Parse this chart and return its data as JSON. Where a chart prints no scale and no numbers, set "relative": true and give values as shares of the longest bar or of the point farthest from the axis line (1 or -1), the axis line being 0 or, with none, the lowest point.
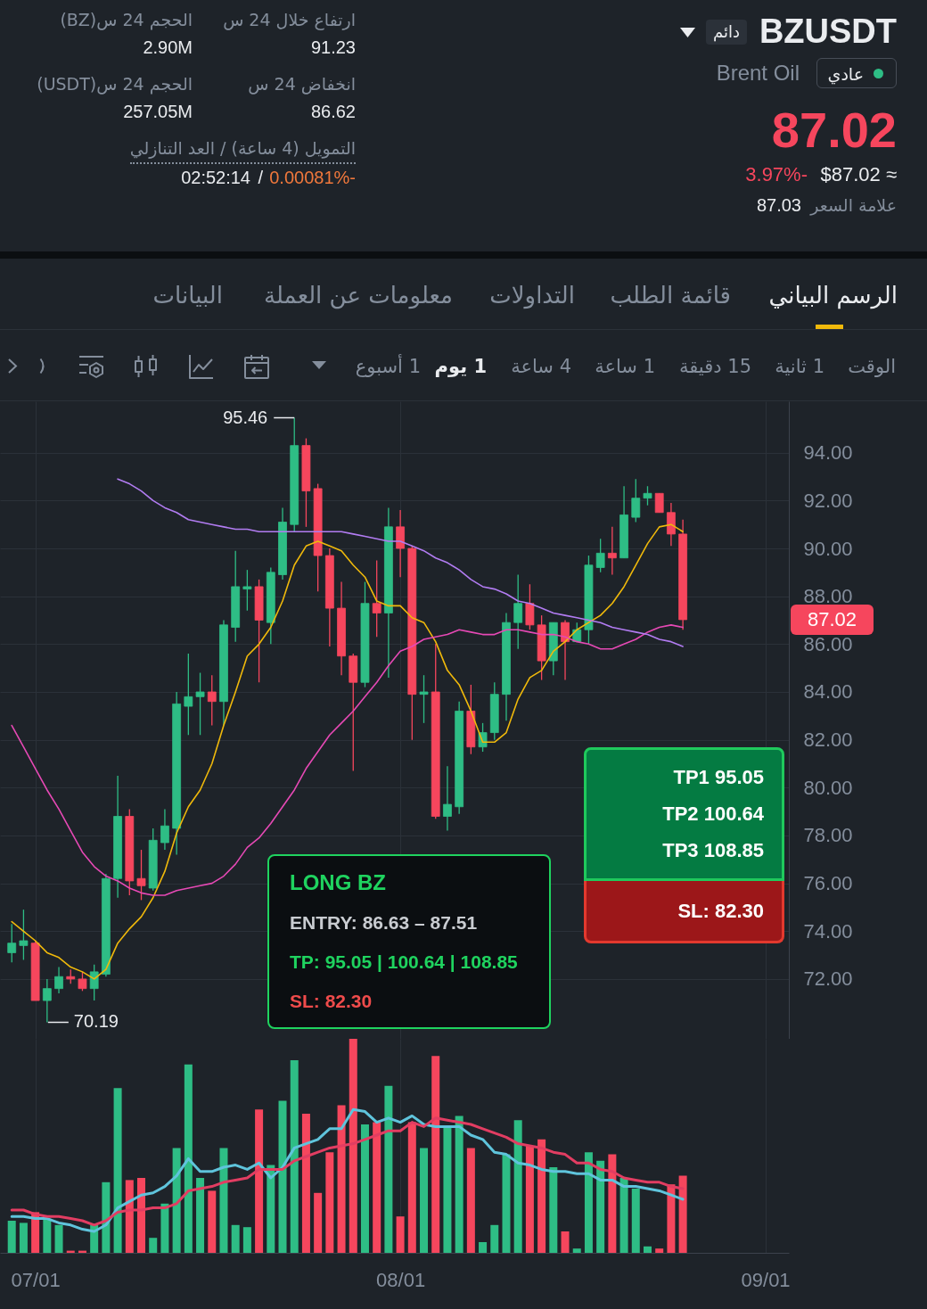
{
  "chart_data": [
    {
      "type": "other",
      "title": "BZUSDT",
      "subtitle": "Brent Oil",
      "annotations": [
        "دائم",
        "عادي",
        "87.02",
        "3.97%-",
        "$87.02 ≈",
        "علامة السعر",
        "87.03",
        "ارتفاع خلال 24 س",
        "91.23",
        "انخفاض 24 س",
        "86.62",
        "الحجم 24 س(BZ)",
        "2.90M",
        "الحجم 24 س(USDT)",
        "257.05M",
        "التمويل (4 ساعة) / العد التنازلي",
        "0.00081%-",
        "/",
        "02:52:14",
        "الرسم البياني",
        "قائمة الطلب",
        "التداولات",
        "معلومات عن العملة",
        "البيانات",
        "الوقت",
        "1 ثانية",
        "15 دقيقة",
        "1 ساعة",
        "4 ساعة",
        "1 يوم",
        "1 أسبوع"
      ]
    },
    {
      "type": "candlestick",
      "x": [
        "--06-29",
        "--06-30",
        "--07-01",
        "--07-02",
        "--07-03",
        "--07-04",
        "--07-05",
        "--07-06",
        "--07-07",
        "--07-08",
        "--07-09",
        "--07-10",
        "--07-11",
        "--07-12",
        "--07-13",
        "--07-14",
        "--07-15",
        "--07-16",
        "--07-17",
        "--07-18",
        "--07-19",
        "--07-20",
        "--07-21",
        "--07-22",
        "--07-23",
        "--07-24",
        "--07-25",
        "--07-26",
        "--07-27",
        "--07-28",
        "--07-29",
        "--07-30",
        "--07-31",
        "--08-01",
        "--08-02",
        "--08-03",
        "--08-04",
        "--08-05",
        "--08-06",
        "--08-07",
        "--08-08",
        "--08-09",
        "--08-10",
        "--08-11",
        "--08-12",
        "--08-13",
        "--08-14",
        "--08-15",
        "--08-16",
        "--08-17",
        "--08-18",
        "--08-19",
        "--08-20",
        "--08-21",
        "--08-22",
        "--08-23",
        "--08-24",
        "--08-25"
      ],
      "ohlc": [
        [
          73.1,
          74.3,
          72.7,
          73.5
        ],
        [
          73.4,
          74.9,
          72.8,
          73.6
        ],
        [
          73.5,
          73.6,
          71.1,
          71.1
        ],
        [
          71.1,
          72.0,
          70.19,
          71.6
        ],
        [
          71.6,
          72.5,
          71.4,
          72.1
        ],
        [
          72.1,
          72.4,
          71.8,
          72.0
        ],
        [
          72.0,
          72.3,
          71.5,
          71.6
        ],
        [
          71.6,
          72.6,
          71.1,
          72.3
        ],
        [
          72.2,
          76.4,
          72.1,
          76.2
        ],
        [
          76.2,
          80.5,
          75.4,
          78.8
        ],
        [
          78.8,
          79.1,
          75.5,
          76.1
        ],
        [
          76.2,
          77.4,
          75.3,
          75.9
        ],
        [
          75.8,
          78.3,
          75.7,
          77.8
        ],
        [
          77.7,
          79.1,
          77.4,
          78.4
        ],
        [
          78.3,
          84.0,
          77.2,
          83.5
        ],
        [
          83.4,
          85.6,
          82.2,
          83.8
        ],
        [
          83.8,
          84.8,
          82.2,
          84.0
        ],
        [
          84.0,
          84.7,
          82.6,
          83.6
        ],
        [
          83.6,
          87.0,
          82.6,
          86.8
        ],
        [
          86.7,
          89.9,
          86.1,
          88.4
        ],
        [
          88.3,
          89.1,
          87.4,
          88.4
        ],
        [
          88.4,
          88.7,
          84.4,
          87.0
        ],
        [
          86.9,
          89.2,
          86.0,
          89.0
        ],
        [
          88.9,
          91.7,
          88.7,
          91.1
        ],
        [
          91.0,
          95.46,
          90.7,
          94.3
        ],
        [
          94.3,
          94.6,
          90.9,
          92.4
        ],
        [
          92.5,
          92.7,
          88.2,
          89.7
        ],
        [
          89.7,
          90.0,
          85.9,
          87.5
        ],
        [
          87.5,
          88.6,
          84.7,
          85.5
        ],
        [
          85.5,
          85.6,
          80.7,
          84.4
        ],
        [
          84.4,
          88.6,
          84.2,
          87.7
        ],
        [
          87.7,
          89.5,
          86.3,
          87.3
        ],
        [
          87.3,
          91.7,
          84.6,
          90.9
        ],
        [
          90.9,
          91.6,
          88.8,
          90.0
        ],
        [
          90.0,
          90.1,
          82.0,
          83.9
        ],
        [
          83.9,
          84.7,
          82.7,
          84.0
        ],
        [
          84.0,
          86.0,
          78.7,
          78.8
        ],
        [
          78.8,
          80.9,
          78.2,
          79.3
        ],
        [
          79.2,
          83.6,
          78.9,
          83.2
        ],
        [
          83.2,
          84.3,
          81.4,
          81.7
        ],
        [
          81.7,
          82.7,
          81.5,
          82.3
        ],
        [
          82.3,
          84.4,
          82.0,
          83.9
        ],
        [
          83.9,
          87.3,
          82.8,
          86.9
        ],
        [
          86.9,
          88.9,
          85.8,
          87.7
        ],
        [
          87.7,
          88.5,
          86.6,
          86.8
        ],
        [
          86.8,
          87.2,
          84.5,
          85.3
        ],
        [
          85.3,
          86.9,
          84.7,
          86.9
        ],
        [
          86.9,
          87.0,
          84.5,
          86.1
        ],
        [
          86.1,
          86.9,
          86.1,
          86.6
        ],
        [
          86.6,
          89.7,
          86.0,
          89.3
        ],
        [
          89.2,
          90.4,
          89.0,
          89.8
        ],
        [
          89.8,
          90.9,
          88.9,
          89.6
        ],
        [
          89.6,
          92.6,
          89.6,
          91.4
        ],
        [
          91.3,
          92.9,
          91.1,
          92.1
        ],
        [
          92.1,
          92.6,
          91.8,
          92.3
        ],
        [
          92.3,
          92.3,
          91.5,
          91.5
        ],
        [
          91.5,
          91.9,
          90.1,
          90.6
        ],
        [
          90.6,
          91.2,
          86.6,
          87.02
        ]
      ],
      "colors": [
        "#2ebd85",
        "#2ebd85",
        "#f6465d",
        "#2ebd85",
        "#2ebd85",
        "#f6465d",
        "#f6465d",
        "#2ebd85",
        "#2ebd85",
        "#2ebd85",
        "#f6465d",
        "#f6465d",
        "#2ebd85",
        "#2ebd85",
        "#2ebd85",
        "#2ebd85",
        "#2ebd85",
        "#f6465d",
        "#2ebd85",
        "#2ebd85",
        "#2ebd85",
        "#f6465d",
        "#2ebd85",
        "#2ebd85",
        "#2ebd85",
        "#f6465d",
        "#f6465d",
        "#f6465d",
        "#f6465d",
        "#f6465d",
        "#2ebd85",
        "#f6465d",
        "#2ebd85",
        "#f6465d",
        "#f6465d",
        "#2ebd85",
        "#f6465d",
        "#2ebd85",
        "#2ebd85",
        "#f6465d",
        "#2ebd85",
        "#2ebd85",
        "#2ebd85",
        "#2ebd85",
        "#f6465d",
        "#f6465d",
        "#2ebd85",
        "#f6465d",
        "#2ebd85",
        "#2ebd85",
        "#2ebd85",
        "#f6465d",
        "#2ebd85",
        "#2ebd85",
        "#2ebd85",
        "#f6465d",
        "#f6465d",
        "#f6465d"
      ],
      "series": [
        {
          "type": "line",
          "color": "#f0b90b",
          "values": [
            74.4,
            74.0,
            73.6,
            73.1,
            72.9,
            72.5,
            72.3,
            72.0,
            72.4,
            73.5,
            74.1,
            74.6,
            75.4,
            76.5,
            78.1,
            79.2,
            79.9,
            81.0,
            82.6,
            84.0,
            85.5,
            86.0,
            86.7,
            87.8,
            89.3,
            90.1,
            90.3,
            90.1,
            89.9,
            89.3,
            88.8,
            87.8,
            87.6,
            87.6,
            87.1,
            86.9,
            86.1,
            84.9,
            84.3,
            83.2,
            81.9,
            81.9,
            82.3,
            83.7,
            84.6,
            84.9,
            85.7,
            86.1,
            86.6,
            86.9,
            87.2,
            87.7,
            88.4,
            89.3,
            90.2,
            90.9,
            91.0,
            90.7
          ]
        },
        {
          "type": "line",
          "color": "#e649b5",
          "values": [
            82.6,
            81.7,
            80.8,
            79.9,
            79.1,
            78.2,
            77.3,
            76.7,
            76.3,
            76.1,
            75.8,
            75.6,
            75.5,
            75.5,
            75.7,
            75.8,
            75.9,
            76.0,
            76.3,
            76.8,
            77.5,
            77.9,
            78.5,
            79.2,
            79.9,
            80.8,
            81.5,
            82.2,
            82.7,
            83.2,
            83.8,
            84.4,
            85.1,
            85.7,
            85.9,
            86.2,
            86.3,
            86.4,
            86.6,
            86.5,
            86.4,
            86.4,
            86.6,
            86.6,
            86.5,
            86.4,
            86.4,
            86.3,
            86.1,
            86.0,
            85.8,
            85.8,
            86.0,
            86.2,
            86.5,
            86.7,
            86.8,
            86.7
          ]
        },
        {
          "type": "line",
          "color": "#b27cf2",
          "values": [
            null,
            null,
            null,
            null,
            null,
            null,
            null,
            null,
            null,
            92.9,
            92.7,
            92.4,
            92.0,
            91.7,
            91.5,
            91.2,
            91.1,
            91.0,
            90.9,
            90.8,
            90.8,
            90.7,
            90.7,
            90.7,
            90.7,
            90.7,
            90.7,
            90.7,
            90.7,
            90.6,
            90.5,
            90.4,
            90.3,
            90.3,
            90.1,
            89.9,
            89.6,
            89.4,
            89.1,
            88.7,
            88.4,
            88.3,
            88.1,
            87.8,
            87.7,
            87.5,
            87.3,
            87.2,
            87.1,
            87.0,
            86.9,
            86.7,
            86.6,
            86.5,
            86.4,
            86.2,
            86.1,
            85.9
          ]
        }
      ],
      "xlim": [
        "--06-28",
        "--09-03"
      ],
      "xticks": [
        {
          "value": "--07-01",
          "label": "07/01"
        },
        {
          "value": "--08-01",
          "label": "08/01"
        },
        {
          "value": "--09-01",
          "label": "09/01"
        }
      ],
      "ylim": [
        69.5,
        96.15
      ],
      "yticks": [
        {
          "value": 72,
          "label": "72.00"
        },
        {
          "value": 74,
          "label": "74.00"
        },
        {
          "value": 76,
          "label": "76.00"
        },
        {
          "value": 78,
          "label": "78.00"
        },
        {
          "value": 80,
          "label": "80.00"
        },
        {
          "value": 82,
          "label": "82.00"
        },
        {
          "value": 84,
          "label": "84.00"
        },
        {
          "value": 86,
          "label": "86.00"
        },
        {
          "value": 88,
          "label": "88.00"
        },
        {
          "value": 90,
          "label": "90.00"
        },
        {
          "value": 92,
          "label": "92.00"
        },
        {
          "value": 94,
          "label": "94.00"
        }
      ],
      "grid": true,
      "tick_labels": "y",
      "annotations": [
        {
          "text": "95.46",
          "x": "--07-23",
          "y": 95.46
        },
        {
          "text": "70.19",
          "x": "--07-02",
          "y": 70.19
        },
        "87.02",
        "TP1 95.05",
        "TP2 100.64",
        "TP3 108.85",
        "SL: 82.30",
        "LONG BZ",
        "ENTRY: 86.63 – 87.51",
        "TP: 95.05 | 100.64 | 108.85",
        "SL: 82.30"
      ]
    },
    {
      "type": "bar",
      "relative": true,
      "x": [
        "--06-29",
        "--06-30",
        "--07-01",
        "--07-02",
        "--07-03",
        "--07-04",
        "--07-05",
        "--07-06",
        "--07-07",
        "--07-08",
        "--07-09",
        "--07-10",
        "--07-11",
        "--07-12",
        "--07-13",
        "--07-14",
        "--07-15",
        "--07-16",
        "--07-17",
        "--07-18",
        "--07-19",
        "--07-20",
        "--07-21",
        "--07-22",
        "--07-23",
        "--07-24",
        "--07-25",
        "--07-26",
        "--07-27",
        "--07-28",
        "--07-29",
        "--07-30",
        "--07-31",
        "--08-01",
        "--08-02",
        "--08-03",
        "--08-04",
        "--08-05",
        "--08-06",
        "--08-07",
        "--08-08",
        "--08-09",
        "--08-10",
        "--08-11",
        "--08-12",
        "--08-13",
        "--08-14",
        "--08-15",
        "--08-16",
        "--08-17",
        "--08-18",
        "--08-19",
        "--08-20",
        "--08-21",
        "--08-22",
        "--08-23",
        "--08-24",
        "--08-25"
      ],
      "series": [
        {
          "type": "bar",
          "values": [
            0.15,
            0.14,
            0.19,
            0.16,
            0.13,
            0.01,
            0.01,
            0.13,
            0.33,
            0.77,
            0.34,
            0.35,
            0.07,
            0.23,
            0.49,
            0.88,
            0.35,
            0.29,
            0.49,
            0.13,
            0.12,
            0.67,
            0.41,
            0.71,
            0.9,
            0.65,
            0.28,
            0.47,
            0.69,
            1.0,
            0.6,
            0.61,
            0.78,
            0.17,
            0.61,
            0.49,
            0.92,
            0.59,
            0.64,
            0.49,
            0.05,
            0.13,
            0.46,
            0.62,
            0.5,
            0.53,
            0.4,
            0.1,
            0.02,
            0.47,
            0.43,
            0.46,
            0.35,
            0.3,
            0.03,
            0.02,
            0.32,
            0.36
          ],
          "colors": [
            "#2ebd85",
            "#2ebd85",
            "#f6465d",
            "#2ebd85",
            "#2ebd85",
            "#f6465d",
            "#f6465d",
            "#2ebd85",
            "#2ebd85",
            "#2ebd85",
            "#f6465d",
            "#f6465d",
            "#2ebd85",
            "#2ebd85",
            "#2ebd85",
            "#2ebd85",
            "#2ebd85",
            "#f6465d",
            "#2ebd85",
            "#2ebd85",
            "#2ebd85",
            "#f6465d",
            "#2ebd85",
            "#2ebd85",
            "#2ebd85",
            "#f6465d",
            "#f6465d",
            "#f6465d",
            "#f6465d",
            "#f6465d",
            "#2ebd85",
            "#f6465d",
            "#2ebd85",
            "#f6465d",
            "#f6465d",
            "#2ebd85",
            "#f6465d",
            "#2ebd85",
            "#2ebd85",
            "#f6465d",
            "#2ebd85",
            "#2ebd85",
            "#2ebd85",
            "#2ebd85",
            "#f6465d",
            "#f6465d",
            "#2ebd85",
            "#f6465d",
            "#2ebd85",
            "#2ebd85",
            "#2ebd85",
            "#f6465d",
            "#2ebd85",
            "#2ebd85",
            "#2ebd85",
            "#f6465d",
            "#f6465d",
            "#f6465d"
          ]
        },
        {
          "type": "line",
          "color": "#5fc4dc",
          "values": [
            0.17,
            0.17,
            0.16,
            0.16,
            0.14,
            0.13,
            0.11,
            0.1,
            0.13,
            0.21,
            0.24,
            0.27,
            0.28,
            0.31,
            0.36,
            0.44,
            0.38,
            0.38,
            0.4,
            0.41,
            0.39,
            0.42,
            0.35,
            0.4,
            0.49,
            0.51,
            0.53,
            0.58,
            0.58,
            0.67,
            0.66,
            0.61,
            0.63,
            0.61,
            0.64,
            0.6,
            0.59,
            0.59,
            0.59,
            0.55,
            0.53,
            0.47,
            0.46,
            0.42,
            0.41,
            0.39,
            0.38,
            0.38,
            0.37,
            0.37,
            0.34,
            0.34,
            0.31,
            0.31,
            0.3,
            0.29,
            0.27,
            0.25
          ]
        },
        {
          "type": "line",
          "color": "#e23d62",
          "values": [
            0.2,
            0.2,
            0.18,
            0.17,
            0.17,
            0.16,
            0.15,
            0.13,
            0.15,
            0.19,
            0.2,
            0.2,
            0.21,
            0.21,
            0.23,
            0.29,
            0.3,
            0.31,
            0.33,
            0.34,
            0.35,
            0.39,
            0.39,
            0.39,
            0.43,
            0.45,
            0.47,
            0.49,
            0.5,
            0.51,
            0.53,
            0.55,
            0.57,
            0.57,
            0.61,
            0.59,
            0.63,
            0.62,
            0.61,
            0.6,
            0.58,
            0.56,
            0.54,
            0.51,
            0.5,
            0.49,
            0.47,
            0.46,
            0.42,
            0.42,
            0.39,
            0.38,
            0.35,
            0.34,
            0.33,
            0.33,
            0.31,
            0.3
          ]
        }
      ],
      "xlim": [
        "--06-28",
        "--09-03"
      ],
      "xticks": [
        {
          "value": "--07-01",
          "label": "07/01"
        },
        {
          "value": "--08-01",
          "label": "08/01"
        },
        {
          "value": "--09-01",
          "label": "09/01"
        }
      ],
      "grid": "x",
      "tick_labels": "x"
    }
  ]
}
